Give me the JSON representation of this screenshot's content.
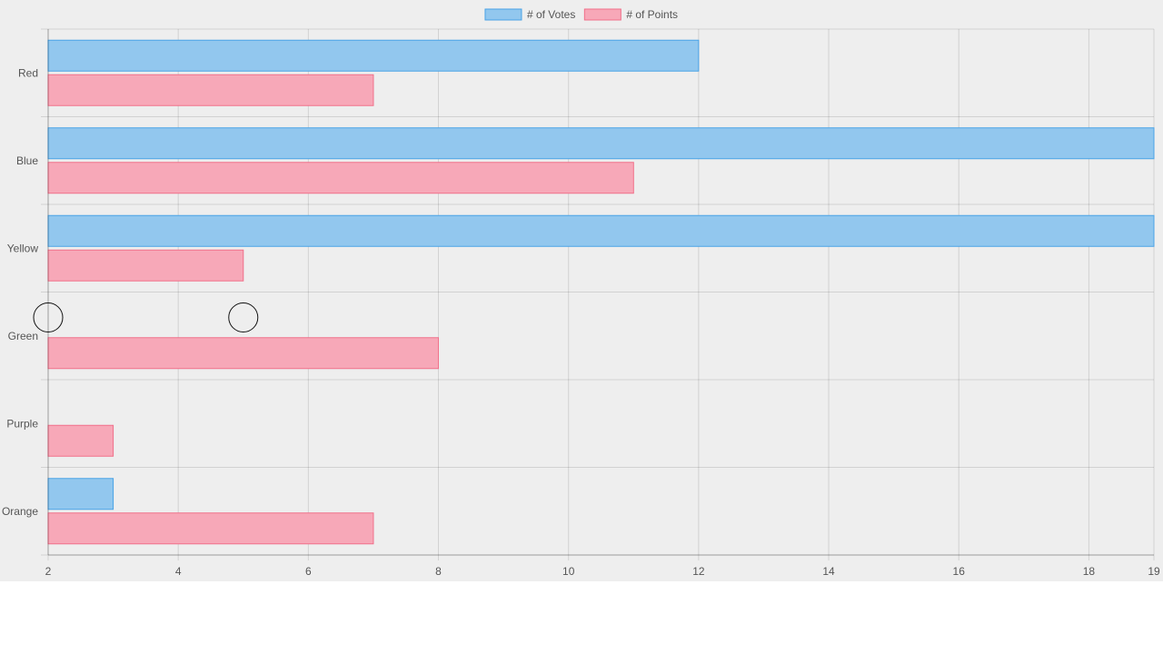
{
  "chart_data": {
    "type": "bar",
    "orientation": "horizontal",
    "categories": [
      "Red",
      "Blue",
      "Yellow",
      "Green",
      "Purple",
      "Orange"
    ],
    "series": [
      {
        "name": "# of Votes",
        "values": [
          12,
          19,
          19,
          2,
          2,
          3
        ],
        "fill": "#92c7ee",
        "stroke": "#4aa3e6"
      },
      {
        "name": "# of Points",
        "values": [
          7,
          11,
          5,
          8,
          3,
          7
        ],
        "fill": "#f7a8b8",
        "stroke": "#f0708a"
      }
    ],
    "xlim": [
      2,
      19
    ],
    "xticks": [
      2,
      4,
      6,
      8,
      10,
      12,
      14,
      16,
      18,
      19
    ],
    "title": "",
    "xlabel": "",
    "ylabel": "",
    "grid": true,
    "legend_position": "top-center"
  },
  "markers": [
    {
      "category": "Green",
      "value": 2
    },
    {
      "category": "Green",
      "value": 5
    }
  ]
}
